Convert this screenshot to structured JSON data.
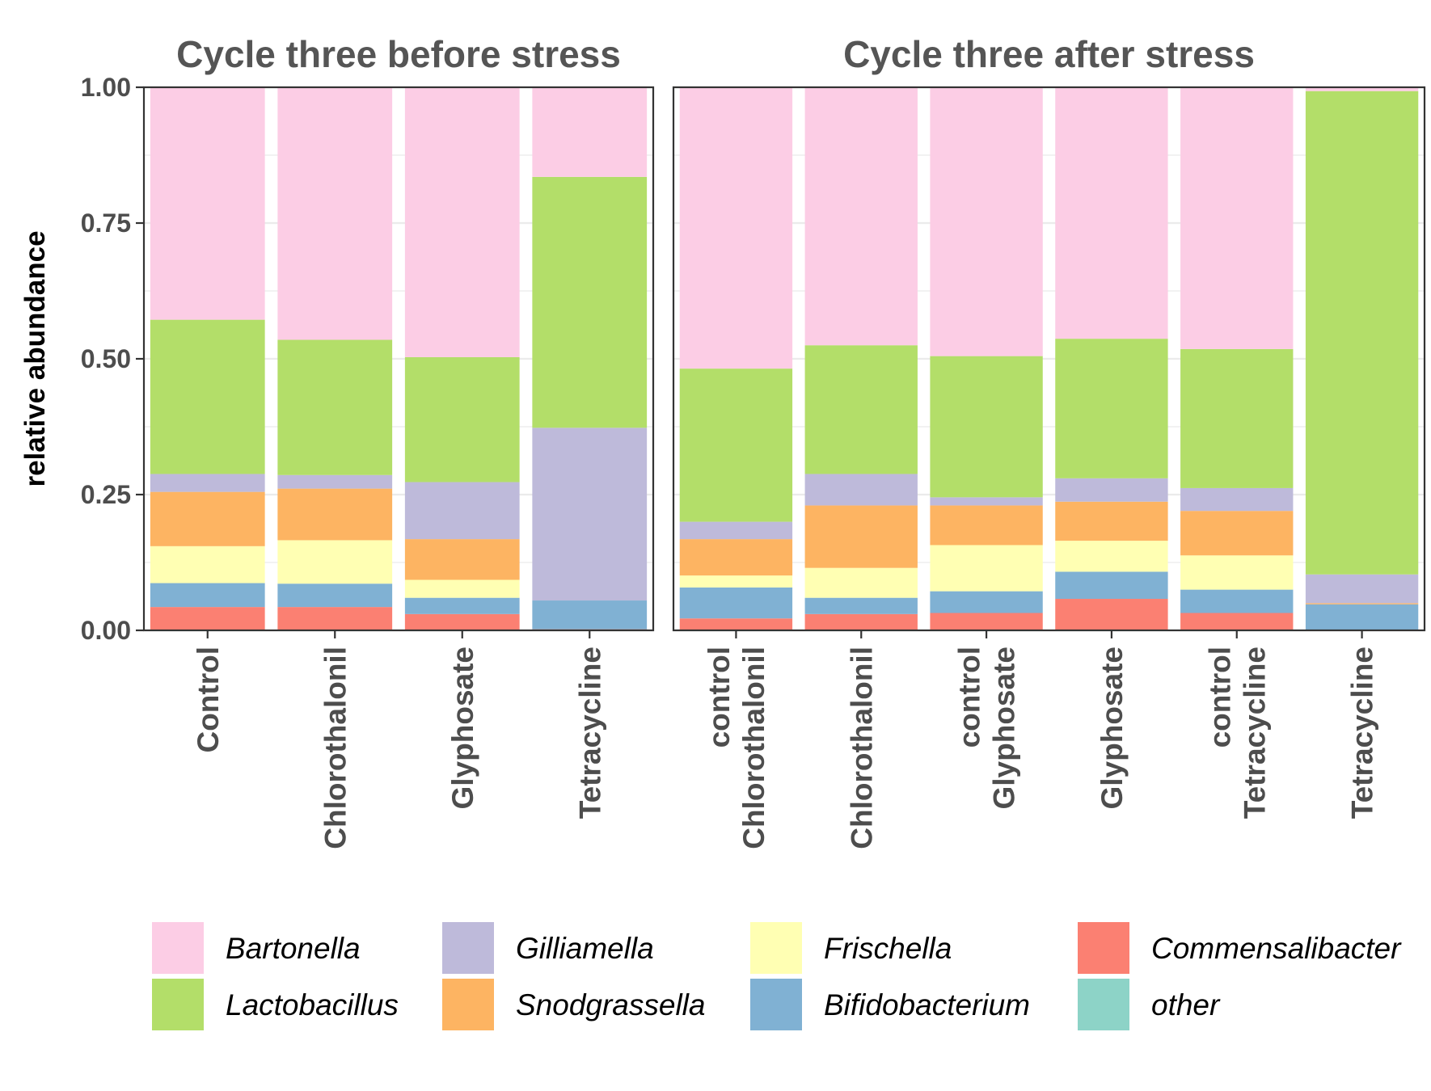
{
  "chart_data": {
    "type": "bar",
    "stacked": true,
    "ylabel": "relative abundance",
    "ylim": [
      0,
      1
    ],
    "yticks": [
      "0.00",
      "0.25",
      "0.50",
      "0.75",
      "1.00"
    ],
    "grid": true,
    "legend_position": "bottom",
    "series": [
      {
        "name": "Bartonella",
        "color": "#FCCDE5"
      },
      {
        "name": "Lactobacillus",
        "color": "#B3DE69"
      },
      {
        "name": "Gilliamella",
        "color": "#BEBADA"
      },
      {
        "name": "Snodgrassella",
        "color": "#FDB462"
      },
      {
        "name": "Frischella",
        "color": "#FFFFB3"
      },
      {
        "name": "Bifidobacterium",
        "color": "#80B1D3"
      },
      {
        "name": "Commensalibacter",
        "color": "#FB8072"
      },
      {
        "name": "other",
        "color": "#8DD3C7"
      }
    ],
    "stack_order_bottom_to_top": [
      "other",
      "Commensalibacter",
      "Bifidobacterium",
      "Frischella",
      "Snodgrassella",
      "Gilliamella",
      "Lactobacillus",
      "Bartonella"
    ],
    "panels": [
      {
        "title": "Cycle three before stress",
        "categories": [
          [
            "Control"
          ],
          [
            "Chlorothalonil"
          ],
          [
            "Glyphosate"
          ],
          [
            "Tetracycline"
          ]
        ],
        "values": {
          "other": [
            0.0,
            0.0,
            0.0,
            0.0
          ],
          "Commensalibacter": [
            0.043,
            0.043,
            0.03,
            0.002
          ],
          "Bifidobacterium": [
            0.044,
            0.043,
            0.03,
            0.053
          ],
          "Frischella": [
            0.068,
            0.08,
            0.033,
            0.0
          ],
          "Snodgrassella": [
            0.1,
            0.095,
            0.075,
            0.0
          ],
          "Gilliamella": [
            0.033,
            0.025,
            0.105,
            0.318
          ],
          "Lactobacillus": [
            0.284,
            0.249,
            0.23,
            0.462
          ],
          "Bartonella": [
            0.428,
            0.465,
            0.497,
            0.165
          ]
        }
      },
      {
        "title": "Cycle three after stress",
        "categories": [
          [
            "control",
            "Chlorothalonil"
          ],
          [
            "Chlorothalonil"
          ],
          [
            "control",
            "Glyphosate"
          ],
          [
            "Glyphosate"
          ],
          [
            "control",
            "Tetracycline"
          ],
          [
            "Tetracycline"
          ]
        ],
        "values": {
          "other": [
            0.0,
            0.0,
            0.0,
            0.0,
            0.0,
            0.0
          ],
          "Commensalibacter": [
            0.022,
            0.03,
            0.032,
            0.058,
            0.032,
            0.0
          ],
          "Bifidobacterium": [
            0.057,
            0.03,
            0.04,
            0.05,
            0.043,
            0.048
          ],
          "Frischella": [
            0.022,
            0.055,
            0.085,
            0.057,
            0.063,
            0.0
          ],
          "Snodgrassella": [
            0.067,
            0.115,
            0.073,
            0.072,
            0.082,
            0.002
          ],
          "Gilliamella": [
            0.032,
            0.058,
            0.015,
            0.043,
            0.042,
            0.053
          ],
          "Lactobacillus": [
            0.282,
            0.237,
            0.26,
            0.257,
            0.256,
            0.89
          ],
          "Bartonella": [
            0.518,
            0.475,
            0.495,
            0.463,
            0.482,
            0.007
          ]
        }
      }
    ]
  }
}
